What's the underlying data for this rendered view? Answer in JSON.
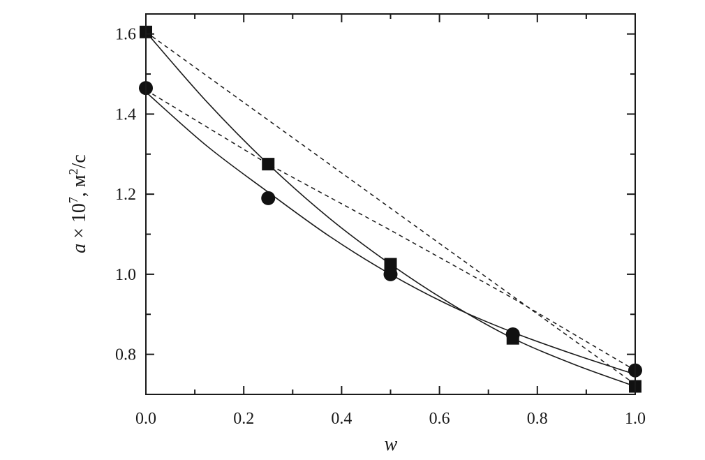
{
  "chart_data": {
    "type": "line",
    "xlabel": "w",
    "ylabel_parts": [
      "a",
      " × 10",
      "7",
      ",  м",
      "2",
      "/c"
    ],
    "xlim": [
      0.0,
      1.0
    ],
    "ylim": [
      0.7,
      1.65
    ],
    "xticks": [
      0.0,
      0.2,
      0.4,
      0.6,
      0.8,
      1.0
    ],
    "xtick_labels": [
      "0.0",
      "0.2",
      "0.4",
      "0.6",
      "0.8",
      "1.0"
    ],
    "yticks": [
      0.8,
      1.0,
      1.2,
      1.4,
      1.6
    ],
    "ytick_labels": [
      "0.8",
      "1.0",
      "1.2",
      "1.4",
      "1.6"
    ],
    "grid": false,
    "legend": "none",
    "series": [
      {
        "marker": "square",
        "style": "solid",
        "x": [
          0.0,
          0.25,
          0.5,
          0.75,
          1.0
        ],
        "y": [
          1.605,
          1.275,
          1.025,
          0.84,
          0.72
        ],
        "curve": [
          [
            0.0,
            1.605
          ],
          [
            0.125,
            1.43
          ],
          [
            0.25,
            1.275
          ],
          [
            0.375,
            1.14
          ],
          [
            0.5,
            1.025
          ],
          [
            0.625,
            0.925
          ],
          [
            0.75,
            0.84
          ],
          [
            0.875,
            0.775
          ],
          [
            1.0,
            0.72
          ]
        ]
      },
      {
        "marker": "circle",
        "style": "solid",
        "x": [
          0.0,
          0.25,
          0.5,
          0.75,
          1.0
        ],
        "y": [
          1.465,
          1.19,
          1.0,
          0.85,
          0.76
        ],
        "curve": [
          [
            0.0,
            1.455
          ],
          [
            0.125,
            1.32
          ],
          [
            0.25,
            1.205
          ],
          [
            0.375,
            1.095
          ],
          [
            0.5,
            1.0
          ],
          [
            0.625,
            0.92
          ],
          [
            0.75,
            0.855
          ],
          [
            0.875,
            0.8
          ],
          [
            1.0,
            0.75
          ]
        ]
      },
      {
        "style": "dashed",
        "curve": [
          [
            0.0,
            1.605
          ],
          [
            0.25,
            1.385
          ],
          [
            0.5,
            1.165
          ],
          [
            0.75,
            0.945
          ],
          [
            1.0,
            0.725
          ]
        ]
      },
      {
        "style": "dashed",
        "curve": [
          [
            0.0,
            1.46
          ],
          [
            0.25,
            1.275
          ],
          [
            0.5,
            1.11
          ],
          [
            0.75,
            0.94
          ],
          [
            1.0,
            0.76
          ]
        ]
      }
    ]
  }
}
